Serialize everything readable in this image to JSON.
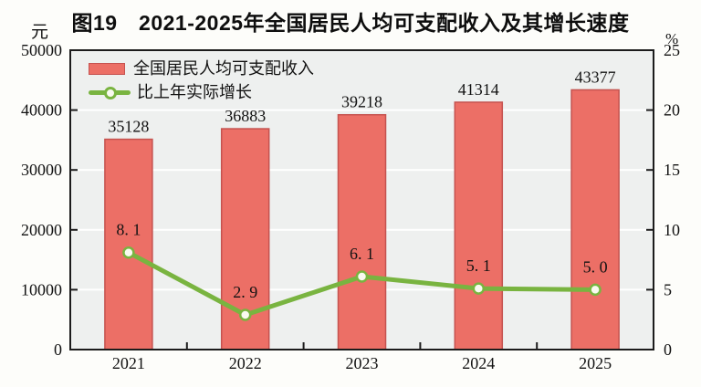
{
  "title": "图19　2021-2025年全国居民人均可支配收入及其增长速度",
  "left_axis_unit": "元",
  "right_axis_unit": "%",
  "legend": {
    "bar_label": "全国居民人均可支配收入",
    "line_label": "比上年实际增长"
  },
  "colors": {
    "bar_fill": "#ec6f66",
    "bar_stroke": "#c5524f",
    "line": "#79b440",
    "marker_fill": "#f9faf0",
    "plot_bg": "#eef0ef",
    "grid": "#ffffff",
    "axis": "#1c1c1c",
    "text": "#121212"
  },
  "chart_data": {
    "type": "bar+line combo",
    "categories": [
      "2021",
      "2022",
      "2023",
      "2024",
      "2025"
    ],
    "series": [
      {
        "name": "全国居民人均可支配收入",
        "type": "bar",
        "axis": "left",
        "values": [
          35128,
          36883,
          39218,
          41314,
          43377
        ],
        "value_labels": [
          "35128",
          "36883",
          "39218",
          "41314",
          "43377"
        ]
      },
      {
        "name": "比上年实际增长",
        "type": "line",
        "axis": "right",
        "values": [
          8.1,
          2.9,
          6.1,
          5.1,
          5.0
        ],
        "value_labels": [
          "8. 1",
          "2. 9",
          "6. 1",
          "5. 1",
          "5. 0"
        ]
      }
    ],
    "left_axis": {
      "min": 0,
      "max": 50000,
      "step": 10000,
      "ticks": [
        "50000",
        "40000",
        "30000",
        "20000",
        "10000",
        "0"
      ]
    },
    "right_axis": {
      "min": 0,
      "max": 25,
      "step": 5,
      "ticks": [
        "25",
        "20",
        "15",
        "10",
        "5",
        "0"
      ]
    },
    "grid": "horizontal white lines at each left-axis step",
    "legend_position": "top-left inside plot"
  }
}
